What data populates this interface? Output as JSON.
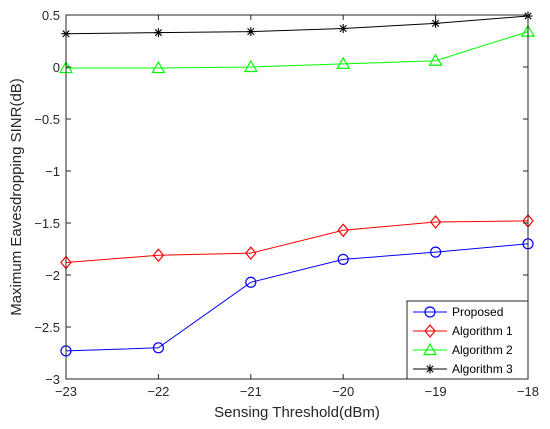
{
  "chart_data": {
    "type": "line",
    "title": "",
    "xlabel": "Sensing Threshold(dBm)",
    "ylabel": "Maximum Eavesdropping SINR(dB)",
    "xlim": [
      -23,
      -18
    ],
    "ylim": [
      -3,
      0.5
    ],
    "x_ticks": [
      -23,
      -22,
      -21,
      -20,
      -19,
      -18
    ],
    "y_ticks": [
      0.5,
      0,
      -0.5,
      -1,
      -1.5,
      -2,
      -2.5,
      -3
    ],
    "grid": false,
    "legend_position": "bottom-right",
    "x": [
      -23,
      -22,
      -21,
      -20,
      -19,
      -18
    ],
    "series": [
      {
        "name": "Proposed",
        "color": "#0000ff",
        "marker": "circle",
        "values": [
          -2.73,
          -2.7,
          -2.07,
          -1.85,
          -1.78,
          -1.7
        ]
      },
      {
        "name": "Algorithm 1",
        "color": "#ff0000",
        "marker": "diamond",
        "values": [
          -1.88,
          -1.81,
          -1.79,
          -1.57,
          -1.49,
          -1.48
        ]
      },
      {
        "name": "Algorithm 2",
        "color": "#00ff00",
        "marker": "triangle",
        "values": [
          -0.01,
          -0.01,
          0.0,
          0.03,
          0.06,
          0.34
        ]
      },
      {
        "name": "Algorithm 3",
        "color": "#000000",
        "marker": "asterisk",
        "values": [
          0.32,
          0.33,
          0.34,
          0.37,
          0.42,
          0.49
        ]
      }
    ]
  }
}
